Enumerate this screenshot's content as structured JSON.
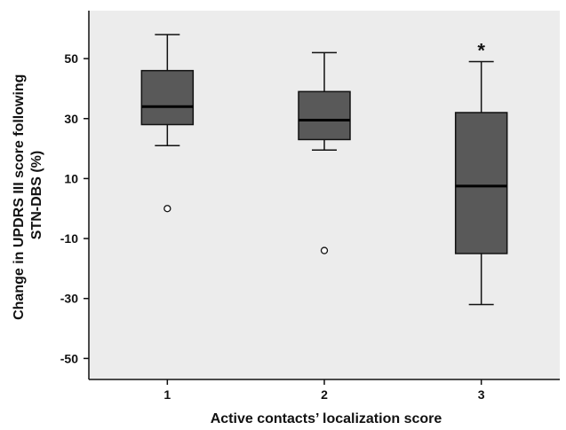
{
  "chart_data": {
    "type": "box",
    "title": "",
    "xlabel": "Active contacts’ localization score",
    "ylabel_lines": [
      "Change in UPDRS III score following",
      "STN-DBS (%)"
    ],
    "ylim": [
      -57,
      66
    ],
    "yticks": [
      50,
      30,
      10,
      -10,
      -30,
      -50
    ],
    "ytick_labels": [
      "50",
      "30",
      "10",
      "-10",
      "-30",
      "-50"
    ],
    "categories": [
      "1",
      "2",
      "3"
    ],
    "boxes": [
      {
        "category": "1",
        "whisker_low": 21,
        "q1": 28,
        "median": 34,
        "q3": 46,
        "whisker_high": 58,
        "outliers": [
          0
        ],
        "extremes": []
      },
      {
        "category": "2",
        "whisker_low": 19.5,
        "q1": 23,
        "median": 29.5,
        "q3": 39,
        "whisker_high": 52,
        "outliers": [
          -14
        ],
        "extremes": []
      },
      {
        "category": "3",
        "whisker_low": -32,
        "q1": -15,
        "median": 7.5,
        "q3": 32,
        "whisker_high": 49,
        "outliers": [],
        "extremes": [
          53.5
        ]
      }
    ],
    "outlier_symbol": "○",
    "extreme_symbol": "*",
    "colors": {
      "plot_background": "#ececec",
      "box_fill": "#595959",
      "line": "#111111"
    },
    "grid": false,
    "legend": "none"
  }
}
